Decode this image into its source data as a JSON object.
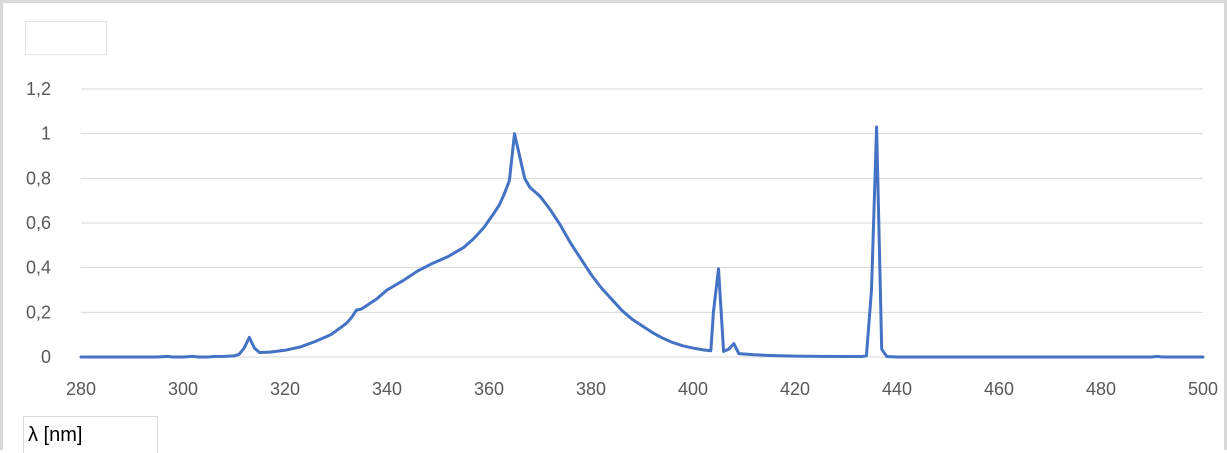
{
  "chart_data": {
    "type": "line",
    "title": "",
    "xlabel": "λ [nm]",
    "ylabel": "",
    "xlim": [
      280,
      500
    ],
    "ylim": [
      0,
      1.2
    ],
    "x_ticks": [
      "280",
      "300",
      "320",
      "340",
      "360",
      "380",
      "400",
      "420",
      "440",
      "460",
      "480",
      "500"
    ],
    "y_ticks": [
      "0",
      "0,2",
      "0,4",
      "0,6",
      "0,8",
      "1",
      "1,2"
    ],
    "grid": "horizontal",
    "series": [
      {
        "color": "#4472c4",
        "points": [
          [
            280,
            0
          ],
          [
            295,
            0
          ],
          [
            297,
            0.003
          ],
          [
            298,
            0
          ],
          [
            300,
            0
          ],
          [
            302,
            0.003
          ],
          [
            303,
            0
          ],
          [
            305,
            0
          ],
          [
            306,
            0.002
          ],
          [
            308,
            0.003
          ],
          [
            310,
            0.005
          ],
          [
            311,
            0.012
          ],
          [
            312,
            0.04
          ],
          [
            313,
            0.088
          ],
          [
            314,
            0.04
          ],
          [
            315,
            0.02
          ],
          [
            317,
            0.022
          ],
          [
            320,
            0.03
          ],
          [
            323,
            0.045
          ],
          [
            326,
            0.07
          ],
          [
            329,
            0.1
          ],
          [
            332,
            0.15
          ],
          [
            333,
            0.175
          ],
          [
            334,
            0.21
          ],
          [
            335,
            0.215
          ],
          [
            336,
            0.23
          ],
          [
            338,
            0.26
          ],
          [
            340,
            0.3
          ],
          [
            343,
            0.34
          ],
          [
            346,
            0.385
          ],
          [
            349,
            0.42
          ],
          [
            352,
            0.45
          ],
          [
            355,
            0.49
          ],
          [
            357,
            0.53
          ],
          [
            359,
            0.58
          ],
          [
            361,
            0.645
          ],
          [
            362,
            0.68
          ],
          [
            363,
            0.73
          ],
          [
            364,
            0.79
          ],
          [
            365,
            1.0
          ],
          [
            366,
            0.9
          ],
          [
            367,
            0.8
          ],
          [
            368,
            0.76
          ],
          [
            370,
            0.72
          ],
          [
            372,
            0.66
          ],
          [
            374,
            0.59
          ],
          [
            376,
            0.51
          ],
          [
            378,
            0.44
          ],
          [
            380,
            0.37
          ],
          [
            382,
            0.31
          ],
          [
            384,
            0.26
          ],
          [
            386,
            0.21
          ],
          [
            388,
            0.17
          ],
          [
            390,
            0.14
          ],
          [
            392,
            0.11
          ],
          [
            394,
            0.085
          ],
          [
            396,
            0.065
          ],
          [
            398,
            0.05
          ],
          [
            400,
            0.04
          ],
          [
            402,
            0.032
          ],
          [
            403.5,
            0.028
          ],
          [
            404,
            0.2
          ],
          [
            405,
            0.395
          ],
          [
            406,
            0.025
          ],
          [
            407,
            0.035
          ],
          [
            408,
            0.06
          ],
          [
            409,
            0.015
          ],
          [
            412,
            0.01
          ],
          [
            415,
            0.007
          ],
          [
            420,
            0.004
          ],
          [
            425,
            0.003
          ],
          [
            430,
            0.002
          ],
          [
            433,
            0.002
          ],
          [
            434,
            0.005
          ],
          [
            435,
            0.3
          ],
          [
            436,
            1.03
          ],
          [
            437,
            0.035
          ],
          [
            438,
            0.002
          ],
          [
            440,
            0
          ],
          [
            490,
            0
          ],
          [
            491,
            0.003
          ],
          [
            492,
            0
          ],
          [
            500,
            0
          ]
        ]
      }
    ]
  }
}
